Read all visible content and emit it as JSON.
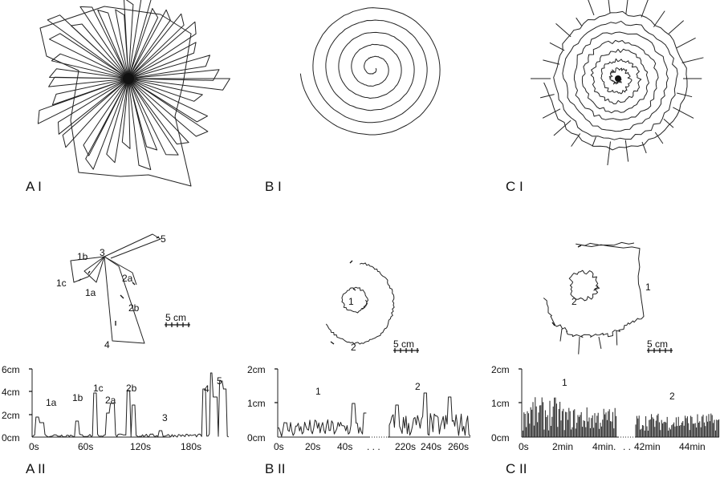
{
  "panels": {
    "ai": "A I",
    "bi": "B I",
    "ci": "C I",
    "aii": "A II",
    "bii": "B II",
    "cii": "C II"
  },
  "scale_bar": "5 cm",
  "a": {
    "segments": [
      "1a",
      "1b",
      "1c",
      "2a",
      "2b",
      "3",
      "4",
      "5"
    ],
    "y_ticks": [
      "6cm",
      "4cm",
      "2cm",
      "0cm"
    ],
    "x_ticks": [
      "0s",
      "60s",
      "120s",
      "180s"
    ]
  },
  "b": {
    "segments": [
      "1",
      "2"
    ],
    "y_ticks": [
      "2cm",
      "1cm",
      "0cm"
    ],
    "x_ticks_left": [
      "0s",
      "20s",
      "40s"
    ],
    "x_ticks_right": [
      "220s",
      "240s",
      "260s"
    ],
    "ellipsis": ". . ."
  },
  "c": {
    "segments": [
      "1",
      "2"
    ],
    "y_ticks": [
      "2cm",
      "1cm",
      "0cm"
    ],
    "x_ticks_left": [
      "0s",
      "2min",
      "4min."
    ],
    "ellipsis": ". .",
    "x_ticks_right": [
      "42min",
      "44min"
    ]
  }
}
